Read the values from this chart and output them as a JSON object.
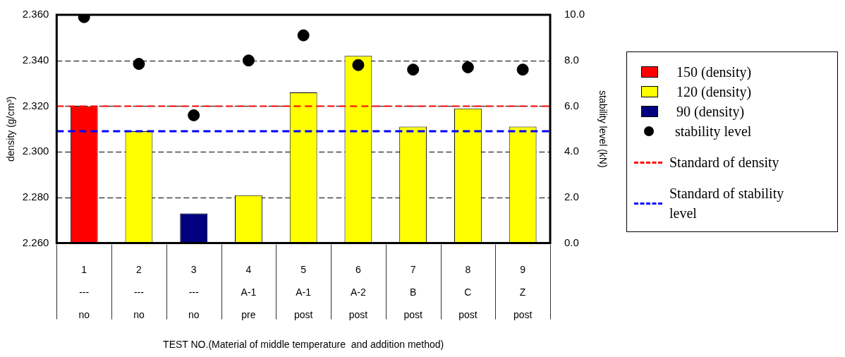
{
  "chart_data": {
    "type": "bar",
    "xlabel": "TEST NO.(Material of middle temperature  and addition method)",
    "ylabel": "density (g/cm³)",
    "y2label": "stability level (kN)",
    "categories": [
      "1\n---\nno",
      "2\n---\nno",
      "3\n---\nno",
      "4\nA-1\npre",
      "5\nA-1\npost",
      "6\nA-2\npost",
      "7\nB\npost",
      "8\nC\npost",
      "9\nZ\npost"
    ],
    "series": [
      {
        "name": "150 (density)",
        "color": "#ff0000",
        "values": [
          2.32,
          null,
          null,
          null,
          null,
          null,
          null,
          null,
          null
        ]
      },
      {
        "name": "120 (density)",
        "color": "#ffff00",
        "values": [
          null,
          2.309,
          null,
          2.281,
          2.326,
          2.342,
          2.311,
          2.319,
          2.311
        ]
      },
      {
        "name": "90 (density)",
        "color": "#000080",
        "values": [
          null,
          null,
          2.273,
          null,
          null,
          null,
          null,
          null,
          null
        ]
      },
      {
        "name": "stability level",
        "type": "scatter",
        "axis": "y2",
        "color": "#000000",
        "x": [
          "1\n---\nno",
          "2\n---\nno",
          "3\n---\nno",
          "4\nA-1\npre",
          "5\nA-1\npost",
          "6\nA-2\npost",
          "7\nB\npost",
          "8\nC\npost",
          "9\nZ\npost"
        ],
        "values": [
          9.9,
          7.85,
          5.6,
          8.0,
          9.1,
          7.8,
          7.6,
          7.7,
          7.6
        ]
      }
    ],
    "marker": "circle",
    "ylim": [
      2.26,
      2.36
    ],
    "yticks": [
      {
        "value": 2.26,
        "label": "2.260"
      },
      {
        "value": 2.28,
        "label": "2.280"
      },
      {
        "value": 2.3,
        "label": "2.300"
      },
      {
        "value": 2.32,
        "label": "2.320"
      },
      {
        "value": 2.34,
        "label": "2.340"
      },
      {
        "value": 2.36,
        "label": "2.360"
      }
    ],
    "y2lim": [
      0,
      10
    ],
    "y2ticks": [
      {
        "value": 0,
        "label": "0.0"
      },
      {
        "value": 2,
        "label": "2.0"
      },
      {
        "value": 4,
        "label": "4.0"
      },
      {
        "value": 6,
        "label": "6.0"
      },
      {
        "value": 8,
        "label": "8.0"
      },
      {
        "value": 10,
        "label": "10.0"
      }
    ],
    "ref_lines": [
      {
        "axis": "y",
        "value": 2.32,
        "label": "Standard of density",
        "color": "#ff0000",
        "line_style": "dashed"
      },
      {
        "axis": "y2",
        "value": 4.9,
        "label": "Standard of stability level",
        "color": "#0000ff",
        "line_style": "dashed"
      }
    ],
    "grid": "y",
    "legend": "right"
  }
}
